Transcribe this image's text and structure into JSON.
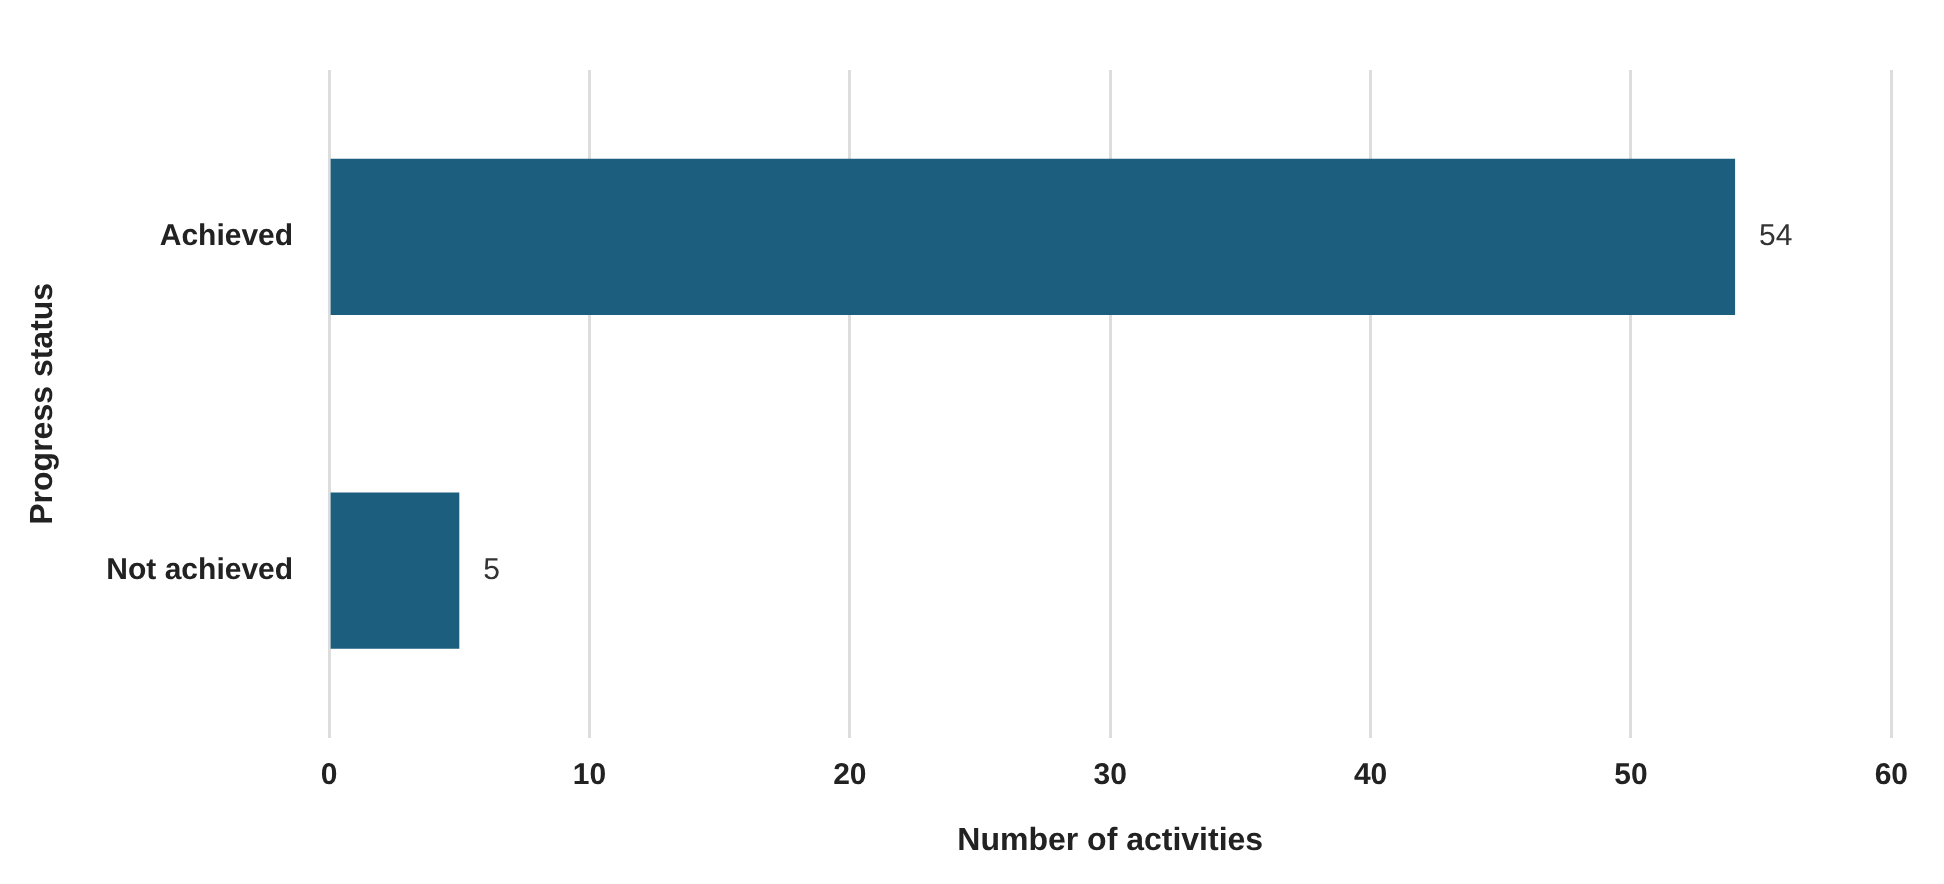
{
  "chart_data": {
    "type": "bar",
    "orientation": "horizontal",
    "categories": [
      "Achieved",
      "Not achieved"
    ],
    "values": [
      54,
      5
    ],
    "color": "#1b5e7e",
    "xlabel": "Number of activities",
    "ylabel": "Progress status",
    "xlim": [
      0,
      60
    ],
    "xticks": [
      0,
      10,
      20,
      30,
      40,
      50,
      60
    ],
    "grid": "x",
    "data_labels": true,
    "legend": false
  }
}
